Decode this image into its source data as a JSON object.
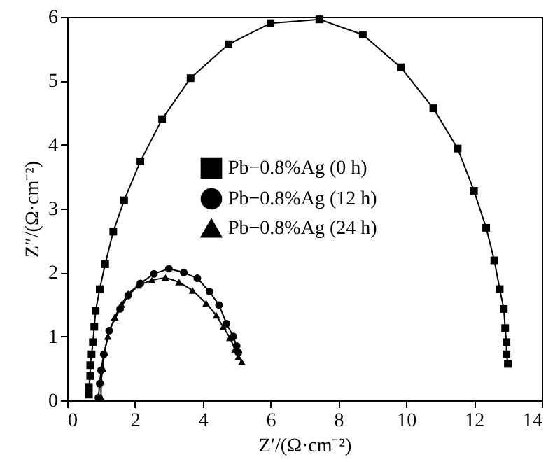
{
  "chart_data": {
    "type": "line",
    "xlabel": "Z′/(Ω·cm⁻²)",
    "ylabel": "Z″/(Ω·cm⁻²)",
    "xlim": [
      0,
      14
    ],
    "xticks": [
      0,
      2,
      4,
      6,
      8,
      10,
      12,
      14
    ],
    "ylim": [
      0,
      6
    ],
    "yticks": [
      0,
      1,
      2,
      3,
      4,
      5,
      6
    ],
    "grid": false,
    "legend": "top",
    "line_style": "solid",
    "series": [
      {
        "name": "Pb−0.8%Ag (0 h)",
        "color": "#000000",
        "marker": "square",
        "x": [
          0.64,
          0.64,
          0.68,
          0.68,
          0.72,
          0.76,
          0.8,
          0.84,
          0.96,
          1.12,
          1.36,
          1.68,
          2.16,
          2.8,
          3.64,
          4.76,
          6.0,
          7.44,
          8.72,
          9.84,
          10.8,
          11.52,
          12.0,
          12.36,
          12.6,
          12.76,
          12.88,
          12.92,
          12.96,
          12.96,
          13.0
        ],
        "values": [
          0.09,
          0.21,
          0.38,
          0.55,
          0.72,
          0.91,
          1.15,
          1.4,
          1.74,
          2.13,
          2.64,
          3.13,
          3.74,
          4.4,
          5.04,
          5.57,
          5.9,
          5.96,
          5.72,
          5.21,
          4.57,
          3.94,
          3.28,
          2.7,
          2.19,
          1.74,
          1.43,
          1.13,
          0.91,
          0.72,
          0.57
        ]
      },
      {
        "name": "Pb−0.8%Ag (12 h)",
        "color": "#000000",
        "marker": "circle",
        "x": [
          0.92,
          0.96,
          1.0,
          1.08,
          1.24,
          1.56,
          1.8,
          2.16,
          2.56,
          3.0,
          3.44,
          3.84,
          4.2,
          4.48,
          4.7,
          4.9,
          5.0,
          5.05
        ],
        "values": [
          0.04,
          0.26,
          0.47,
          0.72,
          1.09,
          1.43,
          1.64,
          1.83,
          1.98,
          2.06,
          2.0,
          1.91,
          1.7,
          1.49,
          1.2,
          1.0,
          0.85,
          0.75
        ]
      },
      {
        "name": "Pb−0.8%Ag (24 h)",
        "color": "#000000",
        "marker": "triangle",
        "x": [
          1.0,
          1.0,
          1.05,
          1.1,
          1.2,
          1.4,
          1.6,
          1.8,
          2.1,
          2.5,
          2.9,
          3.3,
          3.7,
          4.1,
          4.4,
          4.6,
          4.8,
          4.95,
          5.05,
          5.15
        ],
        "values": [
          0.05,
          0.3,
          0.5,
          0.75,
          1.0,
          1.3,
          1.5,
          1.67,
          1.8,
          1.88,
          1.92,
          1.85,
          1.72,
          1.52,
          1.33,
          1.15,
          0.98,
          0.8,
          0.68,
          0.6
        ]
      }
    ]
  }
}
